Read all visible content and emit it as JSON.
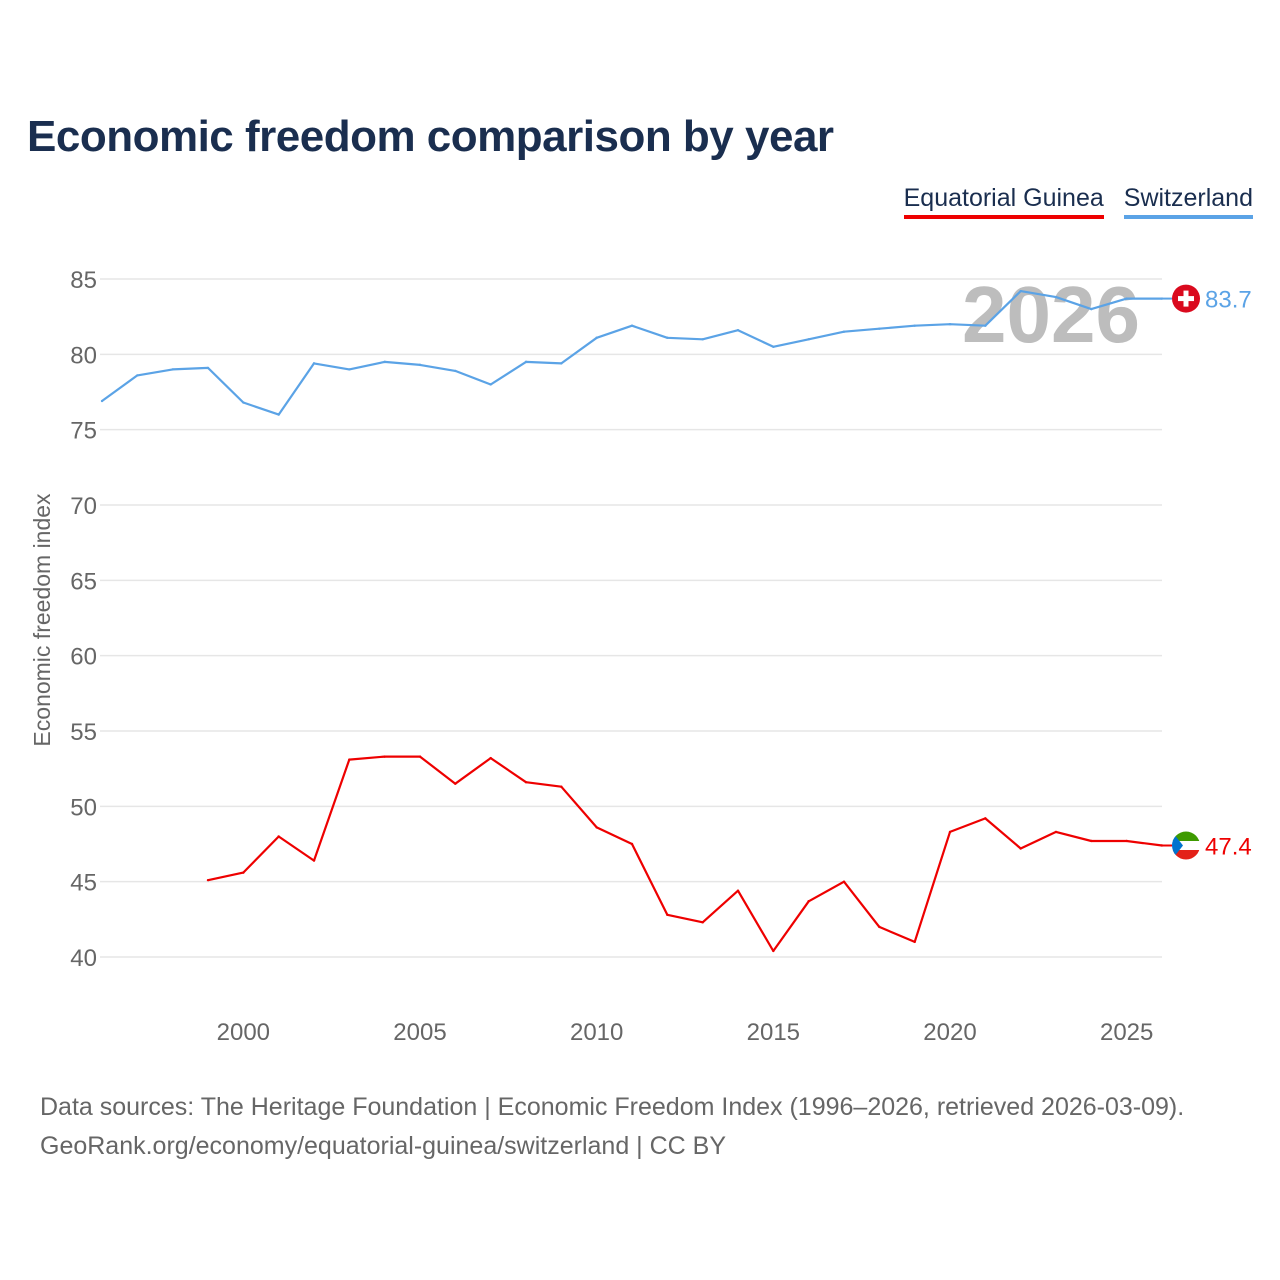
{
  "chart_data": {
    "type": "line",
    "title": "Economic freedom comparison by year",
    "ylabel": "Economic freedom index",
    "xlabel": "",
    "xlim": [
      1996,
      2026
    ],
    "ylim": [
      40,
      85
    ],
    "yticks": [
      40,
      45,
      50,
      55,
      60,
      65,
      70,
      75,
      80,
      85
    ],
    "xticks": [
      2000,
      2005,
      2010,
      2015,
      2020,
      2025
    ],
    "grid": true,
    "legend_position": "top-right",
    "watermark_year": "2026",
    "series": [
      {
        "name": "Equatorial Guinea",
        "color": "#ee0000",
        "flag": "equatorial-guinea-flag",
        "end_label": "47.4",
        "x": [
          1999,
          2000,
          2001,
          2002,
          2003,
          2004,
          2005,
          2006,
          2007,
          2008,
          2009,
          2010,
          2011,
          2012,
          2013,
          2014,
          2015,
          2016,
          2017,
          2018,
          2019,
          2020,
          2021,
          2022,
          2023,
          2024,
          2025,
          2026
        ],
        "values": [
          45.1,
          45.6,
          48.0,
          46.4,
          53.1,
          53.3,
          53.3,
          51.5,
          53.2,
          51.6,
          51.3,
          48.6,
          47.5,
          42.8,
          42.3,
          44.4,
          40.4,
          43.7,
          45.0,
          42.0,
          41.0,
          48.3,
          49.2,
          47.2,
          48.3,
          47.7,
          47.7,
          47.4
        ]
      },
      {
        "name": "Switzerland",
        "color": "#5ba3e6",
        "flag": "switzerland-flag",
        "end_label": "83.7",
        "x": [
          1996,
          1997,
          1998,
          1999,
          2000,
          2001,
          2002,
          2003,
          2004,
          2005,
          2006,
          2007,
          2008,
          2009,
          2010,
          2011,
          2012,
          2013,
          2014,
          2015,
          2016,
          2017,
          2018,
          2019,
          2020,
          2021,
          2022,
          2023,
          2024,
          2025,
          2026
        ],
        "values": [
          76.9,
          78.6,
          79.0,
          79.1,
          76.8,
          76.0,
          79.4,
          79.0,
          79.5,
          79.3,
          78.9,
          78.0,
          79.5,
          79.4,
          81.1,
          81.9,
          81.1,
          81.0,
          81.6,
          80.5,
          81.0,
          81.5,
          81.7,
          81.9,
          82.0,
          81.9,
          84.2,
          83.8,
          83.0,
          83.7,
          83.7
        ]
      }
    ]
  },
  "footer": {
    "line1": "Data sources: The Heritage Foundation | Economic Freedom Index (1996–2026, retrieved 2026-03-09).",
    "line2": "GeoRank.org/economy/equatorial-guinea/switzerland | CC BY"
  }
}
